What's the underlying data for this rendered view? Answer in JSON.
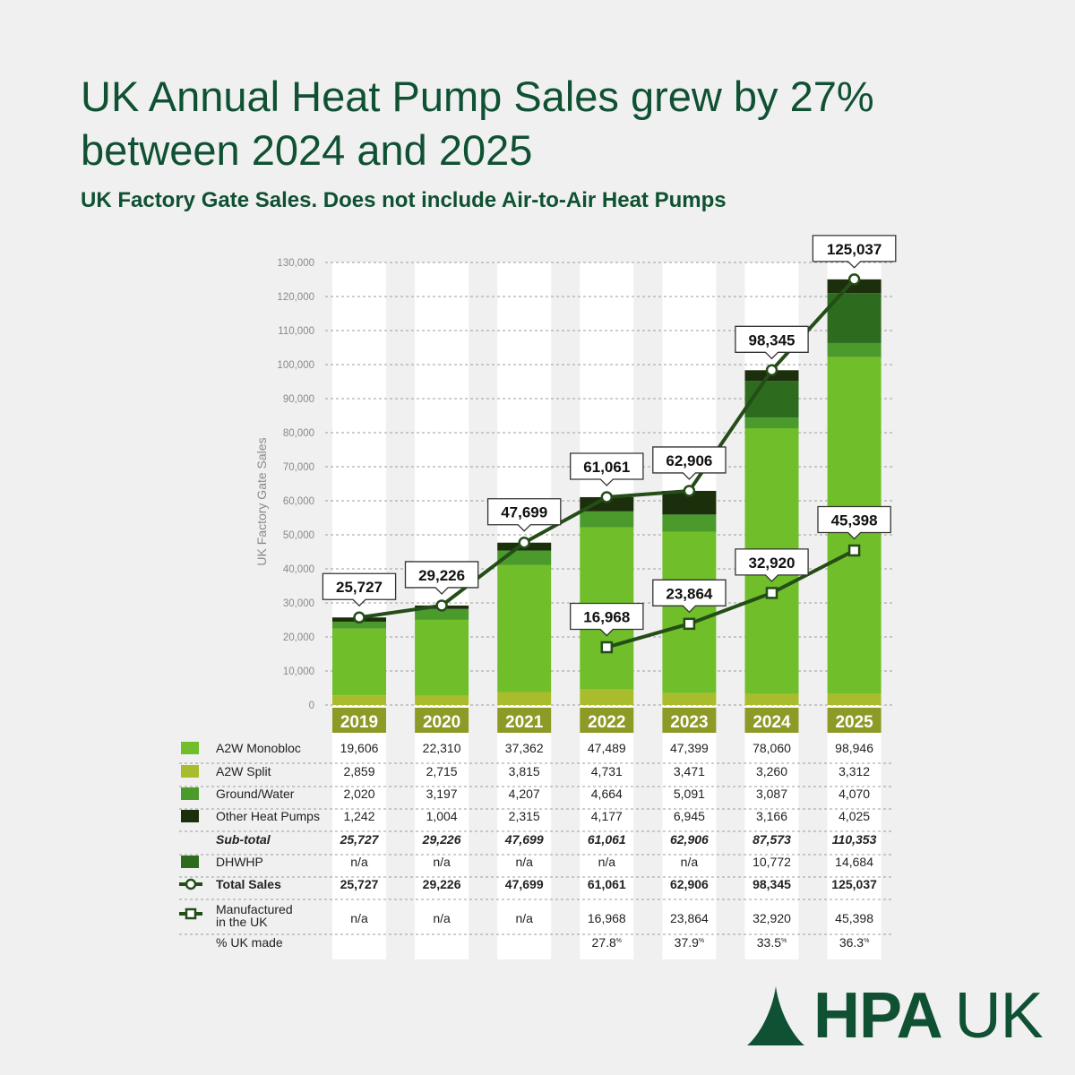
{
  "title": "UK Annual Heat Pump Sales grew by 27% between 2024 and 2025",
  "subtitle": "UK Factory Gate Sales. Does not include Air-to-Air Heat Pumps",
  "logo": {
    "bold": "HPA",
    "light": "UK"
  },
  "colors": {
    "monobloc": "#6fbe2a",
    "split": "#a9bd2c",
    "ground": "#4a9a2c",
    "other": "#1b2f0c",
    "dhwhp": "#2d6b1e",
    "line": "#244d17",
    "year_badge": "#8e9a26"
  },
  "chart_data": {
    "type": "bar",
    "stacked": true,
    "categories": [
      "2019",
      "2020",
      "2021",
      "2022",
      "2023",
      "2024",
      "2025"
    ],
    "ylabel": "UK Factory Gate Sales",
    "ylim": [
      0,
      130000
    ],
    "yticks": [
      "0",
      "10,000",
      "20,000",
      "30,000",
      "40,000",
      "50,000",
      "60,000",
      "70,000",
      "80,000",
      "90,000",
      "100,000",
      "110,000",
      "120,000",
      "130,000"
    ],
    "grid": true,
    "series": [
      {
        "name": "A2W Split",
        "key": "split",
        "values": [
          2859,
          2715,
          3815,
          4731,
          3471,
          3260,
          3312
        ],
        "labels": [
          "2,859",
          "2,715",
          "3,815",
          "4,731",
          "3,471",
          "3,260",
          "3,312"
        ]
      },
      {
        "name": "A2W Monobloc",
        "key": "monobloc",
        "values": [
          19606,
          22310,
          37362,
          47489,
          47399,
          78060,
          98946
        ],
        "labels": [
          "19,606",
          "22,310",
          "37,362",
          "47,489",
          "47,399",
          "78,060",
          "98,946"
        ]
      },
      {
        "name": "Ground/Water",
        "key": "ground",
        "values": [
          2020,
          3197,
          4207,
          4664,
          5091,
          3087,
          4070
        ],
        "labels": [
          "2,020",
          "3,197",
          "4,207",
          "4,664",
          "5,091",
          "3,087",
          "4,070"
        ]
      },
      {
        "name": "DHWHP",
        "key": "dhwhp",
        "values": [
          0,
          0,
          0,
          0,
          0,
          10772,
          14684
        ],
        "labels": [
          "n/a",
          "n/a",
          "n/a",
          "n/a",
          "n/a",
          "10,772",
          "14,684"
        ]
      },
      {
        "name": "Other Heat Pumps",
        "key": "other",
        "values": [
          1242,
          1004,
          2315,
          4177,
          6945,
          3166,
          4025
        ],
        "labels": [
          "1,242",
          "1,004",
          "2,315",
          "4,177",
          "6,945",
          "3,166",
          "4,025"
        ]
      }
    ],
    "subtotal": {
      "name": "Sub-total",
      "labels": [
        "25,727",
        "29,226",
        "47,699",
        "61,061",
        "62,906",
        "87,573",
        "110,353"
      ]
    },
    "total_sales": {
      "name": "Total Sales",
      "values": [
        25727,
        29226,
        47699,
        61061,
        62906,
        98345,
        125037
      ],
      "labels": [
        "25,727",
        "29,226",
        "47,699",
        "61,061",
        "62,906",
        "98,345",
        "125,037"
      ]
    },
    "manufactured_uk": {
      "name": "Manufactured in the UK",
      "name_lines": [
        "Manufactured",
        "in the UK"
      ],
      "values": [
        null,
        null,
        null,
        16968,
        23864,
        32920,
        45398
      ],
      "labels": [
        "n/a",
        "n/a",
        "n/a",
        "16,968",
        "23,864",
        "32,920",
        "45,398"
      ]
    },
    "uk_made_pct": {
      "name": "% UK made",
      "labels": [
        "",
        "",
        "",
        "27.8",
        "37.9",
        "33.5",
        "36.3"
      ],
      "unit": "%"
    }
  }
}
